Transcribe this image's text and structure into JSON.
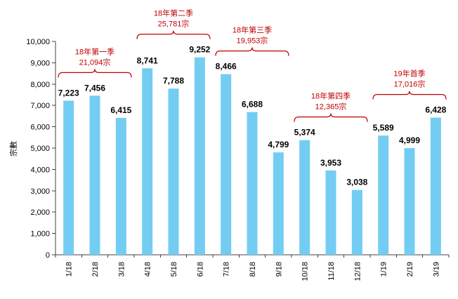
{
  "chart_data": {
    "type": "bar",
    "categories": [
      "1/18",
      "2/18",
      "3/18",
      "4/18",
      "5/18",
      "6/18",
      "7/18",
      "8/18",
      "9/18",
      "10/18",
      "11/18",
      "12/18",
      "1/19",
      "2/19",
      "3/19"
    ],
    "values": [
      7223,
      7456,
      6415,
      8741,
      7788,
      9252,
      8466,
      6688,
      4799,
      5374,
      3953,
      3038,
      5589,
      4999,
      6428
    ],
    "data_labels": [
      "7,223",
      "7,456",
      "6,415",
      "8,741",
      "7,788",
      "9,252",
      "8,466",
      "6,688",
      "4,799",
      "5,374",
      "3,953",
      "3,038",
      "5,589",
      "4,999",
      "6,428"
    ],
    "xlabel": "",
    "ylabel": "宗數",
    "ylim": [
      0,
      10000
    ],
    "yticks": [
      0,
      1000,
      2000,
      3000,
      4000,
      5000,
      6000,
      7000,
      8000,
      9000,
      10000
    ],
    "ytick_labels": [
      "0",
      "1,000",
      "2,000",
      "3,000",
      "4,000",
      "5,000",
      "6,000",
      "7,000",
      "8,000",
      "9,000",
      "10,000"
    ],
    "grid": false,
    "bar_color": "#73CDF2",
    "annotation_color": "#C00000",
    "annotations": [
      {
        "label": "18年第一季",
        "total": "21,094宗",
        "from": "1/18",
        "to": "3/18"
      },
      {
        "label": "18年第二季",
        "total": "25,781宗",
        "from": "4/18",
        "to": "6/18"
      },
      {
        "label": "18年第三季",
        "total": "19,953宗",
        "from": "7/18",
        "to": "9/18"
      },
      {
        "label": "18年第四季",
        "total": "12,365宗",
        "from": "10/18",
        "to": "12/18"
      },
      {
        "label": "19年首季",
        "total": "17,016宗",
        "from": "1/19",
        "to": "3/19"
      }
    ]
  }
}
